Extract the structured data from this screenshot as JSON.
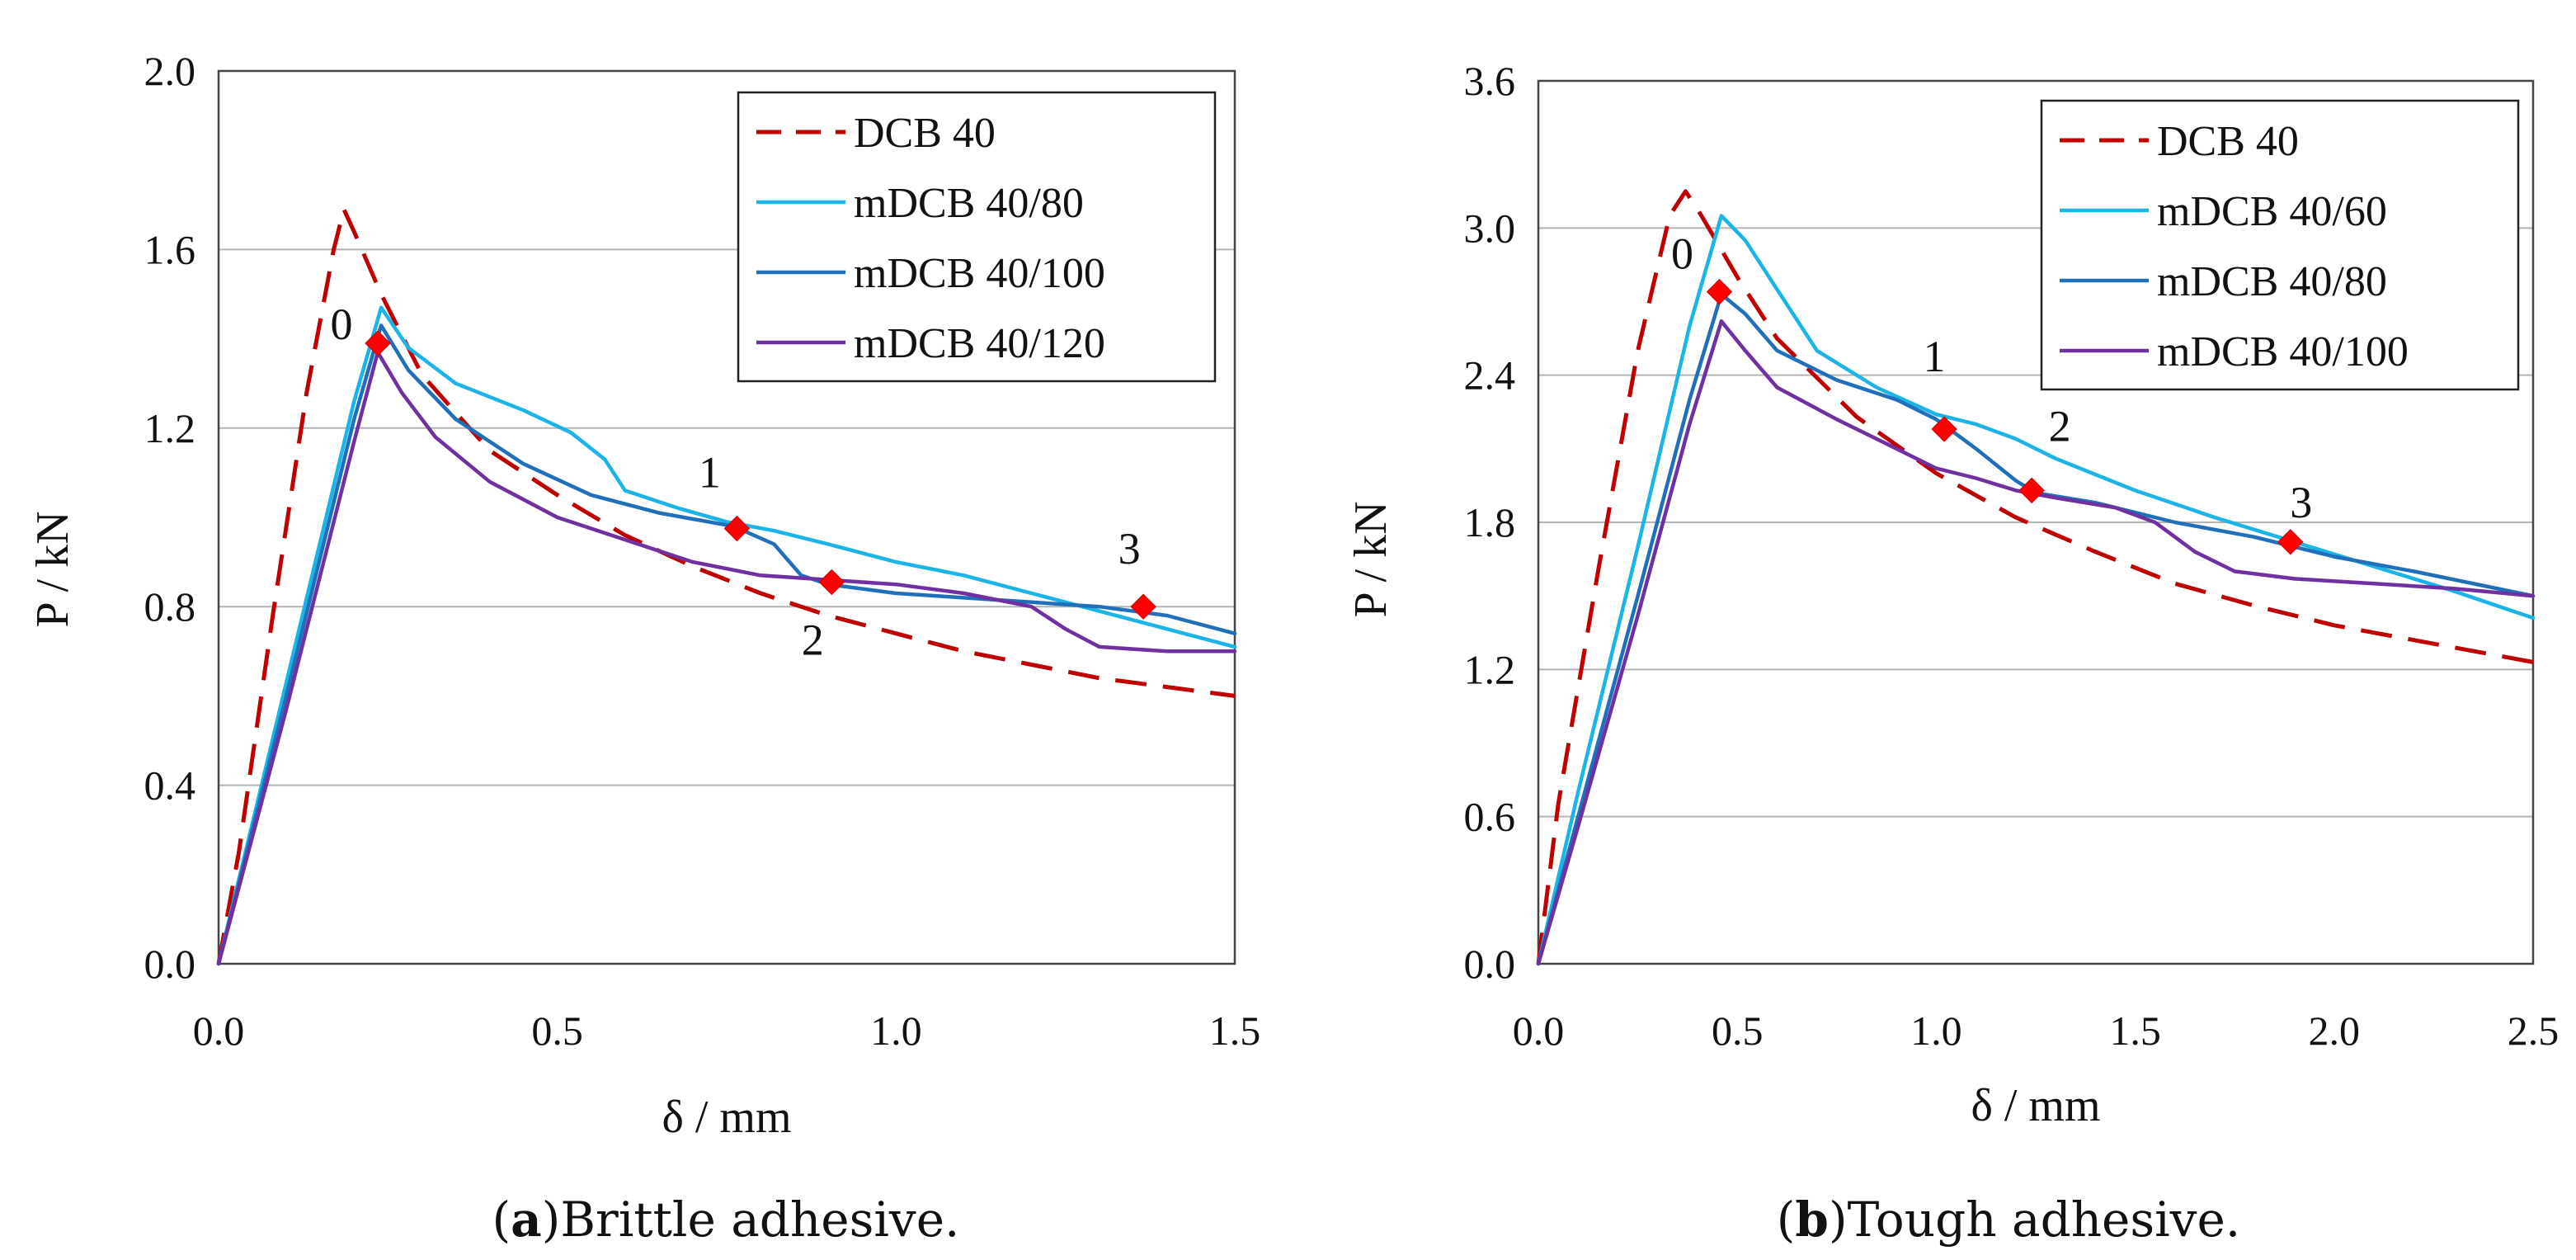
{
  "chart_data": [
    {
      "type": "line",
      "caption": {
        "letter": "a",
        "text": "Brittle adhesive."
      },
      "xlabel": "δ / mm",
      "ylabel": "P / kN",
      "xlim": [
        0,
        1.5
      ],
      "ylim": [
        0,
        2.0
      ],
      "xticks": [
        "0.0",
        "0.5",
        "1.0",
        "1.5"
      ],
      "yticks": [
        "0.0",
        "0.4",
        "0.8",
        "1.2",
        "1.6",
        "2.0"
      ],
      "grid": "horizontal",
      "legend_position": "top-right",
      "series": [
        {
          "name": "DCB 40",
          "color": "#c00000",
          "dash": true,
          "points": [
            [
              0,
              0
            ],
            [
              0.03,
              0.25
            ],
            [
              0.08,
              0.78
            ],
            [
              0.13,
              1.28
            ],
            [
              0.17,
              1.6
            ],
            [
              0.185,
              1.69
            ],
            [
              0.2,
              1.64
            ],
            [
              0.24,
              1.5
            ],
            [
              0.3,
              1.32
            ],
            [
              0.4,
              1.15
            ],
            [
              0.5,
              1.05
            ],
            [
              0.6,
              0.96
            ],
            [
              0.7,
              0.89
            ],
            [
              0.8,
              0.83
            ],
            [
              0.9,
              0.78
            ],
            [
              1.0,
              0.74
            ],
            [
              1.1,
              0.7
            ],
            [
              1.2,
              0.67
            ],
            [
              1.3,
              0.64
            ],
            [
              1.4,
              0.62
            ],
            [
              1.5,
              0.6
            ]
          ]
        },
        {
          "name": "mDCB 40/80",
          "color": "#1ab4e8",
          "dash": false,
          "points": [
            [
              0,
              0
            ],
            [
              0.1,
              0.63
            ],
            [
              0.2,
              1.26
            ],
            [
              0.24,
              1.47
            ],
            [
              0.28,
              1.38
            ],
            [
              0.35,
              1.3
            ],
            [
              0.45,
              1.24
            ],
            [
              0.52,
              1.19
            ],
            [
              0.57,
              1.13
            ],
            [
              0.6,
              1.06
            ],
            [
              0.68,
              1.02
            ],
            [
              0.75,
              0.99
            ],
            [
              0.82,
              0.97
            ],
            [
              0.9,
              0.94
            ],
            [
              1.0,
              0.9
            ],
            [
              1.1,
              0.87
            ],
            [
              1.2,
              0.83
            ],
            [
              1.3,
              0.79
            ],
            [
              1.4,
              0.75
            ],
            [
              1.5,
              0.71
            ]
          ]
        },
        {
          "name": "mDCB 40/100",
          "color": "#1f6fba",
          "dash": false,
          "points": [
            [
              0,
              0
            ],
            [
              0.1,
              0.6
            ],
            [
              0.2,
              1.22
            ],
            [
              0.24,
              1.43
            ],
            [
              0.28,
              1.33
            ],
            [
              0.35,
              1.22
            ],
            [
              0.45,
              1.12
            ],
            [
              0.55,
              1.05
            ],
            [
              0.65,
              1.01
            ],
            [
              0.76,
              0.98
            ],
            [
              0.82,
              0.94
            ],
            [
              0.86,
              0.87
            ],
            [
              0.9,
              0.85
            ],
            [
              1.0,
              0.83
            ],
            [
              1.1,
              0.82
            ],
            [
              1.2,
              0.81
            ],
            [
              1.3,
              0.8
            ],
            [
              1.4,
              0.78
            ],
            [
              1.5,
              0.74
            ]
          ]
        },
        {
          "name": "mDCB 40/120",
          "color": "#7030a0",
          "dash": false,
          "points": [
            [
              0,
              0
            ],
            [
              0.1,
              0.57
            ],
            [
              0.2,
              1.17
            ],
            [
              0.235,
              1.37
            ],
            [
              0.27,
              1.28
            ],
            [
              0.32,
              1.18
            ],
            [
              0.4,
              1.08
            ],
            [
              0.5,
              1.0
            ],
            [
              0.6,
              0.95
            ],
            [
              0.7,
              0.9
            ],
            [
              0.8,
              0.87
            ],
            [
              0.9,
              0.86
            ],
            [
              1.0,
              0.85
            ],
            [
              1.1,
              0.83
            ],
            [
              1.2,
              0.8
            ],
            [
              1.25,
              0.75
            ],
            [
              1.3,
              0.71
            ],
            [
              1.4,
              0.7
            ],
            [
              1.5,
              0.7
            ]
          ]
        }
      ],
      "markers": [
        {
          "label": "0",
          "x": 0.235,
          "y": 1.39
        },
        {
          "label": "1",
          "x": 0.765,
          "y": 0.975
        },
        {
          "label": "2",
          "x": 0.905,
          "y": 0.855
        },
        {
          "label": "3",
          "x": 1.365,
          "y": 0.8
        }
      ]
    },
    {
      "type": "line",
      "caption": {
        "letter": "b",
        "text": "Tough adhesive."
      },
      "xlabel": "δ / mm",
      "ylabel": "P / kN",
      "xlim": [
        0,
        2.5
      ],
      "ylim": [
        0,
        3.6
      ],
      "xticks": [
        "0.0",
        "0.5",
        "1.0",
        "1.5",
        "2.0",
        "2.5"
      ],
      "yticks": [
        "0.0",
        "0.6",
        "1.2",
        "1.8",
        "2.4",
        "3.0",
        "3.6"
      ],
      "grid": "horizontal",
      "legend_position": "top-right",
      "series": [
        {
          "name": "DCB 40",
          "color": "#c00000",
          "dash": true,
          "points": [
            [
              0,
              0
            ],
            [
              0.05,
              0.65
            ],
            [
              0.15,
              1.6
            ],
            [
              0.25,
              2.5
            ],
            [
              0.33,
              3.05
            ],
            [
              0.37,
              3.15
            ],
            [
              0.41,
              3.05
            ],
            [
              0.5,
              2.8
            ],
            [
              0.6,
              2.55
            ],
            [
              0.8,
              2.23
            ],
            [
              1.0,
              2.0
            ],
            [
              1.2,
              1.82
            ],
            [
              1.4,
              1.68
            ],
            [
              1.6,
              1.55
            ],
            [
              1.8,
              1.46
            ],
            [
              2.0,
              1.38
            ],
            [
              2.2,
              1.32
            ],
            [
              2.4,
              1.26
            ],
            [
              2.5,
              1.23
            ]
          ]
        },
        {
          "name": "mDCB 40/60",
          "color": "#1ab4e8",
          "dash": false,
          "points": [
            [
              0,
              0
            ],
            [
              0.1,
              0.7
            ],
            [
              0.25,
              1.7
            ],
            [
              0.38,
              2.6
            ],
            [
              0.46,
              3.05
            ],
            [
              0.52,
              2.95
            ],
            [
              0.6,
              2.75
            ],
            [
              0.7,
              2.5
            ],
            [
              0.85,
              2.35
            ],
            [
              1.0,
              2.24
            ],
            [
              1.1,
              2.2
            ],
            [
              1.2,
              2.14
            ],
            [
              1.3,
              2.06
            ],
            [
              1.5,
              1.93
            ],
            [
              1.7,
              1.82
            ],
            [
              1.9,
              1.72
            ],
            [
              2.1,
              1.62
            ],
            [
              2.3,
              1.52
            ],
            [
              2.5,
              1.41
            ]
          ]
        },
        {
          "name": "mDCB 40/80",
          "color": "#1f6fba",
          "dash": false,
          "points": [
            [
              0,
              0
            ],
            [
              0.1,
              0.6
            ],
            [
              0.25,
              1.5
            ],
            [
              0.38,
              2.3
            ],
            [
              0.46,
              2.73
            ],
            [
              0.52,
              2.65
            ],
            [
              0.6,
              2.5
            ],
            [
              0.75,
              2.38
            ],
            [
              0.9,
              2.3
            ],
            [
              1.0,
              2.22
            ],
            [
              1.1,
              2.1
            ],
            [
              1.2,
              1.97
            ],
            [
              1.25,
              1.92
            ],
            [
              1.4,
              1.88
            ],
            [
              1.6,
              1.8
            ],
            [
              1.8,
              1.74
            ],
            [
              2.0,
              1.66
            ],
            [
              2.2,
              1.6
            ],
            [
              2.5,
              1.5
            ]
          ]
        },
        {
          "name": "mDCB 40/100",
          "color": "#7030a0",
          "dash": false,
          "points": [
            [
              0,
              0
            ],
            [
              0.1,
              0.56
            ],
            [
              0.25,
              1.42
            ],
            [
              0.38,
              2.2
            ],
            [
              0.46,
              2.62
            ],
            [
              0.52,
              2.5
            ],
            [
              0.6,
              2.35
            ],
            [
              0.75,
              2.22
            ],
            [
              0.9,
              2.1
            ],
            [
              1.0,
              2.02
            ],
            [
              1.1,
              1.98
            ],
            [
              1.2,
              1.93
            ],
            [
              1.3,
              1.9
            ],
            [
              1.45,
              1.86
            ],
            [
              1.55,
              1.8
            ],
            [
              1.65,
              1.68
            ],
            [
              1.75,
              1.6
            ],
            [
              1.9,
              1.57
            ],
            [
              2.1,
              1.55
            ],
            [
              2.3,
              1.53
            ],
            [
              2.5,
              1.5
            ]
          ]
        }
      ],
      "markers": [
        {
          "label": "0",
          "x": 0.455,
          "y": 2.74
        },
        {
          "label": "1",
          "x": 1.02,
          "y": 2.18
        },
        {
          "label": "2",
          "x": 1.24,
          "y": 1.93
        },
        {
          "label": "3",
          "x": 1.89,
          "y": 1.72
        }
      ]
    }
  ]
}
